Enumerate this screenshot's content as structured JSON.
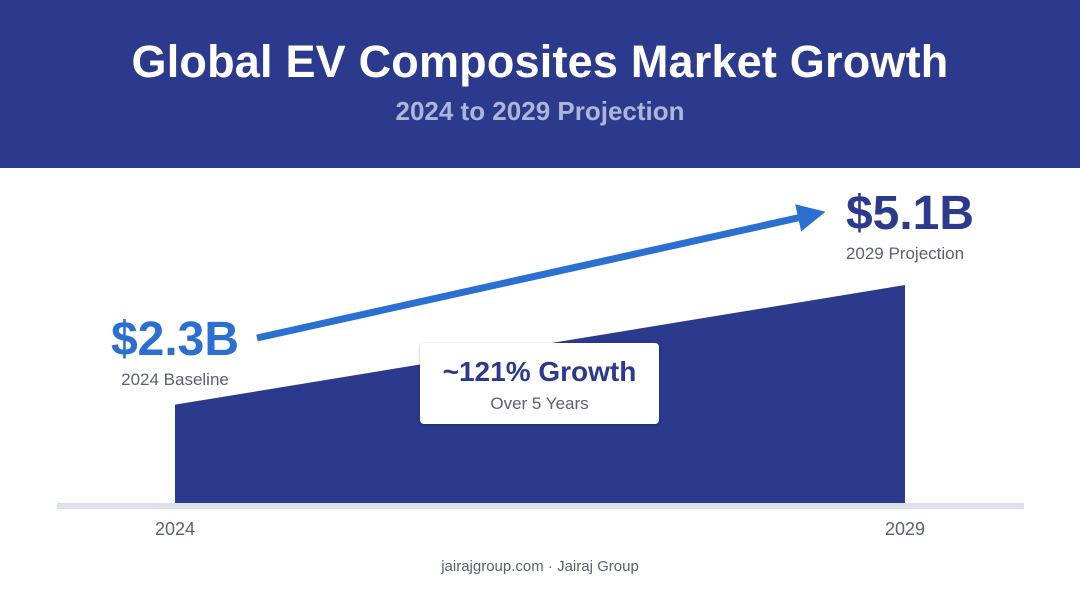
{
  "header": {
    "title": "Global EV Composites Market Growth",
    "subtitle": "2024 to 2029 Projection"
  },
  "chart_data": {
    "type": "area",
    "title": "Global EV Composites Market Growth",
    "subtitle": "2024 to 2029 Projection",
    "x": [
      2024,
      2029
    ],
    "x_tick_labels": [
      "2024",
      "2029"
    ],
    "series": [
      {
        "values": [
          2.3,
          5.1
        ]
      }
    ],
    "unit": "USD billions",
    "ylim": [
      0,
      5.1
    ],
    "grid": false,
    "annotations": {
      "start": {
        "value": "$2.3B",
        "label": "2024 Baseline"
      },
      "end": {
        "value": "$5.1B",
        "label": "2029 Projection"
      },
      "growth": {
        "value": "~121% Growth",
        "label": "Over 5 Years"
      }
    },
    "colors": {
      "area": "#2b3a8c",
      "arrow": "#2b6fd1",
      "axis": "#dde1e8"
    }
  },
  "footer": {
    "text": "jairajgroup.com · Jairaj Group"
  }
}
